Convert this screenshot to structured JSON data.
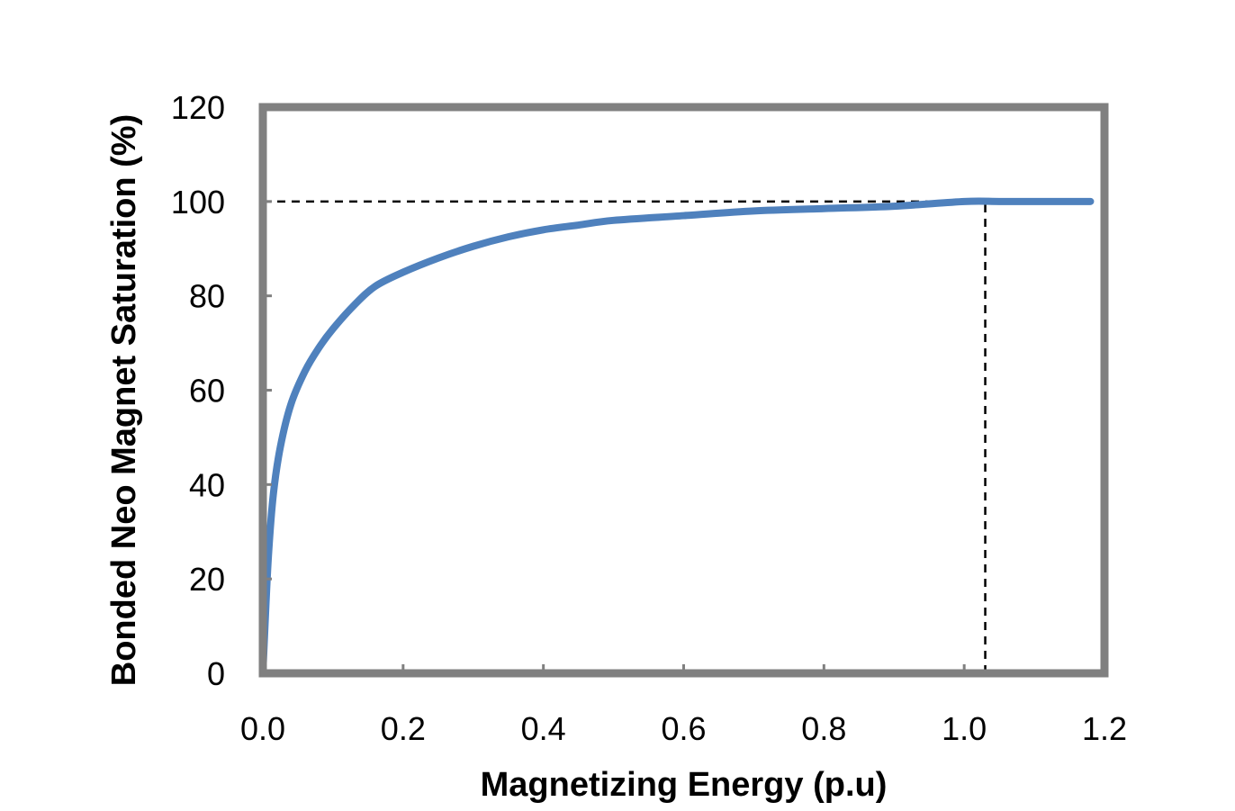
{
  "chart_data": {
    "type": "line",
    "title": "",
    "xlabel": "Magnetizing Energy (p.u)",
    "ylabel": "Bonded Neo Magnet Saturation (%)",
    "xlim": [
      0,
      1.2
    ],
    "ylim": [
      0,
      120
    ],
    "x_ticks": [
      "0.0",
      "0.2",
      "0.4",
      "0.6",
      "0.8",
      "1.0",
      "1.2"
    ],
    "y_ticks": [
      "0",
      "20",
      "40",
      "60",
      "80",
      "100",
      "120"
    ],
    "grid": false,
    "legend": "none",
    "series": [
      {
        "color": "#4f81bd",
        "x": [
          0.0,
          0.003,
          0.008,
          0.015,
          0.025,
          0.04,
          0.06,
          0.08,
          0.1,
          0.13,
          0.16,
          0.2,
          0.25,
          0.3,
          0.35,
          0.4,
          0.45,
          0.5,
          0.6,
          0.7,
          0.8,
          0.9,
          1.0,
          1.05,
          1.1,
          1.15,
          1.18
        ],
        "y": [
          0,
          10,
          25,
          38,
          48,
          57,
          64,
          69,
          73,
          78,
          82,
          85,
          88,
          90.5,
          92.5,
          94,
          95,
          96,
          97,
          98,
          98.5,
          99,
          100,
          100,
          100,
          100,
          100
        ]
      }
    ],
    "reference_lines": [
      {
        "kind": "horizontal",
        "y": 100,
        "x_from": 0,
        "x_to": 1.03,
        "style": "dashed"
      },
      {
        "kind": "vertical",
        "x": 1.03,
        "y_from": 0,
        "y_to": 100,
        "style": "dashed"
      }
    ],
    "frame_color": "#808080"
  }
}
